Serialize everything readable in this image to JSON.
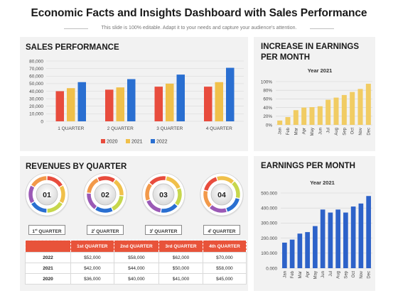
{
  "header": {
    "title": "Economic Facts and Insights Dashboard with Sales Performance",
    "subtitle": "This slide is 100% editable. Adapt it to your needs and capture your audience's attention."
  },
  "colors": {
    "s2020": "#e84c3d",
    "s2021": "#f0c04a",
    "s2022": "#2a6fd1",
    "gold": "#f1cc63",
    "blue": "#2d62c9",
    "red": "#e8533a"
  },
  "sales": {
    "title": "SALES PERFORMANCE",
    "chart_data": {
      "type": "bar",
      "categories": [
        "1 QUARTER",
        "2 QUARTER",
        "3 QUARTER",
        "4 QUARTER"
      ],
      "series": [
        {
          "name": "2020",
          "values": [
            40000,
            42000,
            46000,
            46000
          ]
        },
        {
          "name": "2021",
          "values": [
            44000,
            45000,
            50000,
            52000
          ]
        },
        {
          "name": "2022",
          "values": [
            52000,
            56000,
            62000,
            71000
          ]
        }
      ],
      "yticks": [
        "0",
        "10,000",
        "20,000",
        "30,000",
        "40,000",
        "50,000",
        "60,000",
        "70,000",
        "80,000"
      ],
      "ylim": [
        0,
        80000
      ],
      "grid": true,
      "legend": "bottom"
    }
  },
  "increase": {
    "title1": "INCREASE IN EARNINGS",
    "title2": "PER MONTH",
    "chart_data": {
      "type": "bar",
      "title": "Year 2021",
      "categories": [
        "Jan",
        "Feb",
        "Mar",
        "Apr",
        "May",
        "Jun",
        "Jul",
        "Aug",
        "Sep",
        "Oct",
        "Nov",
        "Dec"
      ],
      "values": [
        10,
        18,
        34,
        40,
        41,
        43,
        58,
        63,
        69,
        76,
        83,
        95
      ],
      "yticks": [
        "0%",
        "20%",
        "40%",
        "60%",
        "80%",
        "100%"
      ],
      "ylim": [
        0,
        100
      ],
      "grid": true
    }
  },
  "monthly": {
    "title": "EARNINGS PER MONTH",
    "chart_data": {
      "type": "bar",
      "title": "Year 2021",
      "categories": [
        "Jan",
        "Feb",
        "Mar",
        "Apr",
        "May",
        "Jun",
        "Jul",
        "Aug",
        "Sep",
        "Oct",
        "Nov",
        "Dec"
      ],
      "values": [
        170000,
        190000,
        230000,
        240000,
        280000,
        390000,
        370000,
        390000,
        370000,
        410000,
        430000,
        480000
      ],
      "yticks": [
        "0.000",
        "100.000",
        "200.000",
        "300.000",
        "400.000",
        "500.000"
      ],
      "ylim": [
        0,
        500000
      ],
      "grid": true
    }
  },
  "revenues": {
    "title": "REVENUES BY QUARTER",
    "circles": [
      "01",
      "02",
      "03",
      "04"
    ],
    "buttons": [
      {
        "n": "1",
        "sup": "st",
        "label": " QUARTER"
      },
      {
        "n": "2",
        "sup": "t",
        "label": " QUARTER"
      },
      {
        "n": "3",
        "sup": "t",
        "label": " QUARTER"
      },
      {
        "n": "4",
        "sup": "t",
        "label": " QUARTER"
      }
    ],
    "table": {
      "headers": [
        "",
        "1st QUARTER",
        "2nd QUARTER",
        "3rd QUARTER",
        "4th QUARTER"
      ],
      "rows": [
        [
          "2022",
          "$52,000",
          "$58,000",
          "$62,000",
          "$70,000"
        ],
        [
          "2021",
          "$42,000",
          "$44,000",
          "$50,000",
          "$58,000"
        ],
        [
          "2020",
          "$36,000",
          "$40,000",
          "$41,000",
          "$45,000"
        ]
      ]
    }
  }
}
